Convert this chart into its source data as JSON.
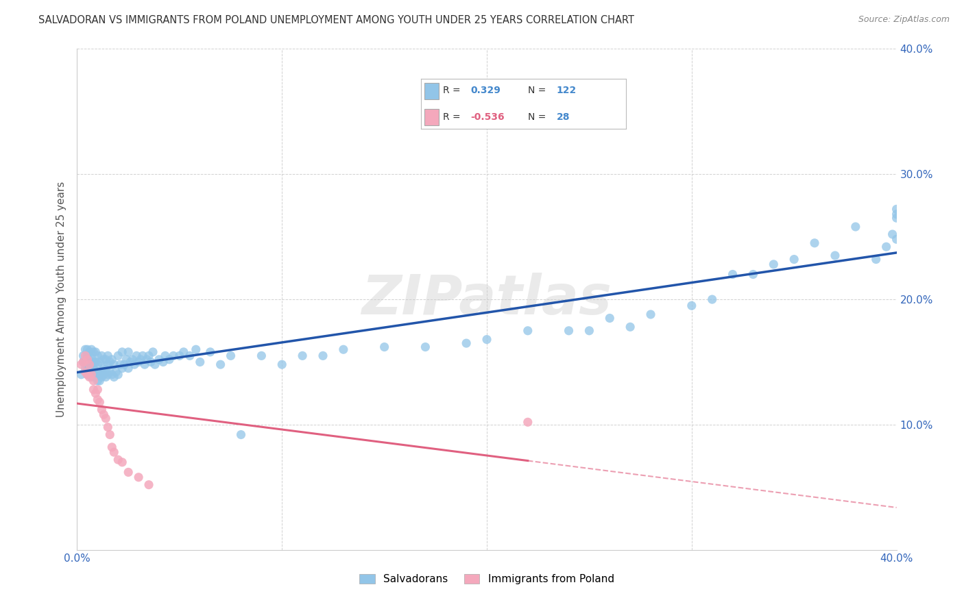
{
  "title": "SALVADORAN VS IMMIGRANTS FROM POLAND UNEMPLOYMENT AMONG YOUTH UNDER 25 YEARS CORRELATION CHART",
  "source": "Source: ZipAtlas.com",
  "ylabel": "Unemployment Among Youth under 25 years",
  "xlim": [
    0.0,
    0.4
  ],
  "ylim": [
    0.0,
    0.4
  ],
  "xticks": [
    0.0,
    0.1,
    0.2,
    0.3,
    0.4
  ],
  "yticks": [
    0.0,
    0.1,
    0.2,
    0.3,
    0.4
  ],
  "xticklabels": [
    "0.0%",
    "",
    "",
    "",
    "40.0%"
  ],
  "yticklabels": [
    "",
    "10.0%",
    "20.0%",
    "30.0%",
    "40.0%"
  ],
  "legend_labels": [
    "Salvadorans",
    "Immigrants from Poland"
  ],
  "R_salv": 0.329,
  "N_salv": 122,
  "R_pol": -0.536,
  "N_pol": 28,
  "color_salv": "#92C5E8",
  "color_pol": "#F4A8BC",
  "color_line_salv": "#2255AA",
  "color_line_pol": "#E06080",
  "background_color": "#FFFFFF",
  "grid_color": "#CCCCCC",
  "watermark": "ZIPatlas",
  "salv_x": [
    0.002,
    0.003,
    0.003,
    0.004,
    0.004,
    0.004,
    0.005,
    0.005,
    0.005,
    0.005,
    0.005,
    0.006,
    0.006,
    0.006,
    0.006,
    0.006,
    0.007,
    0.007,
    0.007,
    0.007,
    0.007,
    0.008,
    0.008,
    0.008,
    0.008,
    0.009,
    0.009,
    0.009,
    0.009,
    0.01,
    0.01,
    0.01,
    0.01,
    0.011,
    0.011,
    0.011,
    0.012,
    0.012,
    0.012,
    0.013,
    0.013,
    0.013,
    0.014,
    0.014,
    0.014,
    0.015,
    0.015,
    0.015,
    0.016,
    0.016,
    0.017,
    0.017,
    0.018,
    0.018,
    0.019,
    0.02,
    0.02,
    0.021,
    0.022,
    0.022,
    0.023,
    0.024,
    0.025,
    0.025,
    0.026,
    0.027,
    0.028,
    0.029,
    0.03,
    0.031,
    0.032,
    0.033,
    0.034,
    0.035,
    0.036,
    0.037,
    0.038,
    0.04,
    0.042,
    0.043,
    0.045,
    0.047,
    0.05,
    0.052,
    0.055,
    0.058,
    0.06,
    0.065,
    0.07,
    0.075,
    0.08,
    0.09,
    0.1,
    0.11,
    0.12,
    0.13,
    0.15,
    0.17,
    0.19,
    0.2,
    0.22,
    0.24,
    0.25,
    0.26,
    0.27,
    0.28,
    0.3,
    0.31,
    0.32,
    0.33,
    0.34,
    0.35,
    0.36,
    0.37,
    0.38,
    0.39,
    0.395,
    0.398,
    0.4,
    0.4,
    0.4,
    0.4
  ],
  "salv_y": [
    0.14,
    0.15,
    0.155,
    0.145,
    0.15,
    0.16,
    0.14,
    0.145,
    0.15,
    0.155,
    0.16,
    0.14,
    0.145,
    0.148,
    0.152,
    0.158,
    0.138,
    0.142,
    0.148,
    0.153,
    0.16,
    0.14,
    0.145,
    0.15,
    0.158,
    0.138,
    0.143,
    0.15,
    0.158,
    0.135,
    0.14,
    0.148,
    0.155,
    0.135,
    0.14,
    0.15,
    0.138,
    0.143,
    0.155,
    0.14,
    0.145,
    0.152,
    0.138,
    0.144,
    0.152,
    0.14,
    0.148,
    0.155,
    0.142,
    0.15,
    0.14,
    0.152,
    0.138,
    0.148,
    0.142,
    0.14,
    0.155,
    0.148,
    0.145,
    0.158,
    0.148,
    0.152,
    0.145,
    0.158,
    0.15,
    0.152,
    0.148,
    0.155,
    0.15,
    0.152,
    0.155,
    0.148,
    0.152,
    0.155,
    0.15,
    0.158,
    0.148,
    0.152,
    0.15,
    0.155,
    0.152,
    0.155,
    0.155,
    0.158,
    0.155,
    0.16,
    0.15,
    0.158,
    0.148,
    0.155,
    0.092,
    0.155,
    0.148,
    0.155,
    0.155,
    0.16,
    0.162,
    0.162,
    0.165,
    0.168,
    0.175,
    0.175,
    0.175,
    0.185,
    0.178,
    0.188,
    0.195,
    0.2,
    0.22,
    0.22,
    0.228,
    0.232,
    0.245,
    0.235,
    0.258,
    0.232,
    0.242,
    0.252,
    0.248,
    0.265,
    0.272,
    0.268
  ],
  "pol_x": [
    0.002,
    0.003,
    0.004,
    0.004,
    0.005,
    0.005,
    0.006,
    0.006,
    0.007,
    0.008,
    0.008,
    0.009,
    0.01,
    0.01,
    0.011,
    0.012,
    0.013,
    0.014,
    0.015,
    0.016,
    0.017,
    0.018,
    0.02,
    0.022,
    0.025,
    0.03,
    0.035,
    0.22
  ],
  "pol_y": [
    0.148,
    0.15,
    0.142,
    0.155,
    0.14,
    0.152,
    0.138,
    0.148,
    0.14,
    0.128,
    0.135,
    0.125,
    0.12,
    0.128,
    0.118,
    0.112,
    0.108,
    0.105,
    0.098,
    0.092,
    0.082,
    0.078,
    0.072,
    0.07,
    0.062,
    0.058,
    0.052,
    0.102
  ]
}
